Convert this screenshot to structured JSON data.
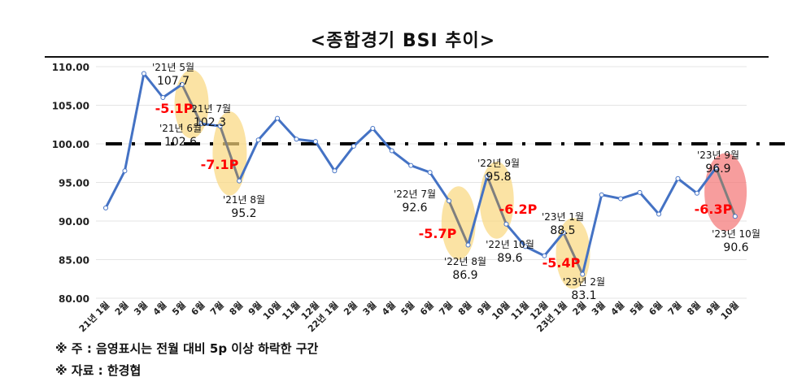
{
  "title": "<종합경기 BSI 추이>",
  "notes": [
    "※ 주 : 음영표시는 전월 대비 5p 이상 하락한 구간",
    "※ 자료 : 한경협"
  ],
  "chart_data": {
    "type": "line",
    "title": "<종합경기 BSI 추이>",
    "categories": [
      "21년 1월",
      "2월",
      "3월",
      "4월",
      "5월",
      "6월",
      "7월",
      "8월",
      "9월",
      "10월",
      "11월",
      "12월",
      "22년 1월",
      "2월",
      "3월",
      "4월",
      "5월",
      "6월",
      "7월",
      "8월",
      "9월",
      "10월",
      "11월",
      "12월",
      "23년 1월",
      "2월",
      "3월",
      "4월",
      "5월",
      "6월",
      "7월",
      "8월",
      "9월",
      "10월"
    ],
    "values": [
      91.7,
      96.5,
      109.1,
      106.0,
      107.7,
      102.6,
      102.3,
      95.2,
      100.5,
      103.3,
      100.6,
      100.3,
      96.5,
      99.7,
      102.0,
      99.1,
      97.2,
      96.3,
      92.6,
      86.9,
      95.8,
      89.6,
      86.7,
      85.5,
      88.5,
      83.1,
      93.4,
      92.9,
      93.7,
      90.9,
      95.5,
      93.6,
      96.9,
      90.6
    ],
    "yticks": [
      "80.00",
      "85.00",
      "90.00",
      "95.00",
      "100.00",
      "105.00",
      "110.00"
    ],
    "ylim": [
      80,
      110
    ],
    "reference_line": 100,
    "grid": true,
    "line_color": "#4472c4",
    "highlight_color": "#f9d77e",
    "highlight_color_last": "#f47c7c",
    "drop_color": "#ff0000",
    "point_labels": [
      {
        "index": 4,
        "period": "'21년 5월",
        "value": "107.7"
      },
      {
        "index": 5,
        "period": "'21년 6월",
        "value": "102.6"
      },
      {
        "index": 6,
        "period": "'21년 7월",
        "value": "102.3"
      },
      {
        "index": 7,
        "period": "'21년 8월",
        "value": "95.2"
      },
      {
        "index": 18,
        "period": "'22년 7월",
        "value": "92.6"
      },
      {
        "index": 19,
        "period": "'22년 8월",
        "value": "86.9"
      },
      {
        "index": 20,
        "period": "'22년 9월",
        "value": "95.8"
      },
      {
        "index": 21,
        "period": "'22년 10월",
        "value": "89.6"
      },
      {
        "index": 24,
        "period": "'23년 1월",
        "value": "88.5"
      },
      {
        "index": 25,
        "period": "'23년 2월",
        "value": "83.1"
      },
      {
        "index": 32,
        "period": "'23년 9월",
        "value": "96.9"
      },
      {
        "index": 33,
        "period": "'23년 10월",
        "value": "90.6"
      }
    ],
    "drops": [
      {
        "from": 4,
        "to": 5,
        "label": "-5.1P"
      },
      {
        "from": 6,
        "to": 7,
        "label": "-7.1P"
      },
      {
        "from": 18,
        "to": 19,
        "label": "-5.7P"
      },
      {
        "from": 20,
        "to": 21,
        "label": "-6.2P"
      },
      {
        "from": 24,
        "to": 25,
        "label": "-5.4P"
      },
      {
        "from": 32,
        "to": 33,
        "label": "-6.3P"
      }
    ]
  }
}
